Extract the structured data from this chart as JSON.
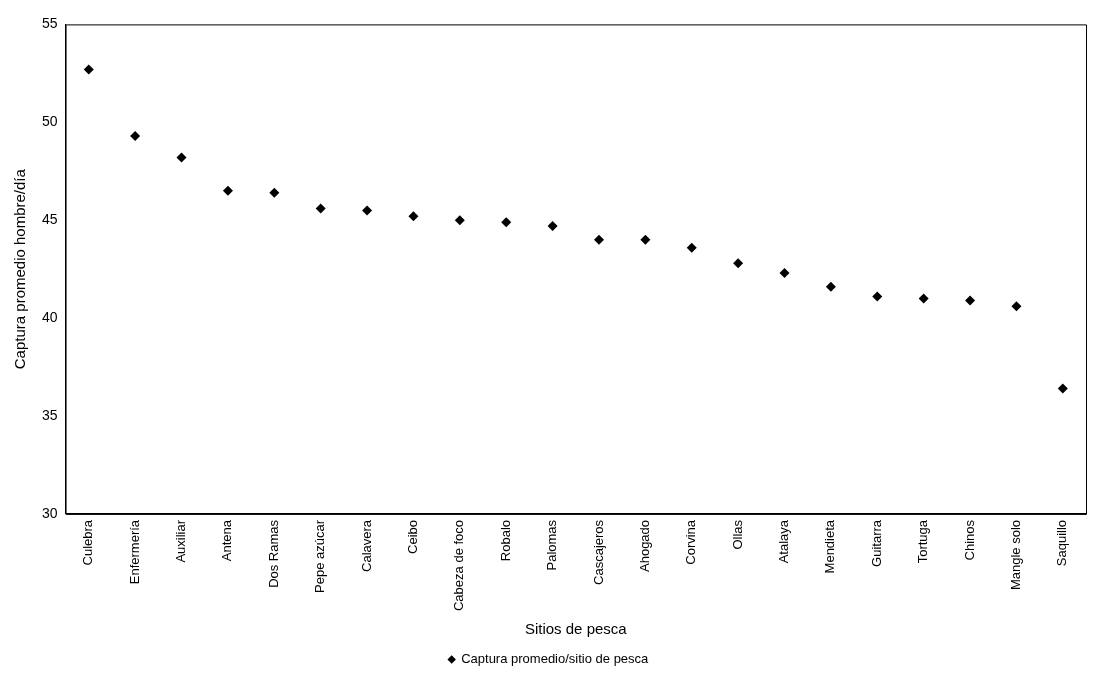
{
  "chart_data": {
    "type": "scatter",
    "xlabel": "Sitios de pesca",
    "ylabel": "Captura promedio hombre/día",
    "categories": [
      "Culebra",
      "Enfermería",
      "Auxiliar",
      "Antena",
      "Dos Ramas",
      "Pepe azúcar",
      "Calavera",
      "Ceibo",
      "Cabeza de foco",
      "Robalo",
      "Palomas",
      "Cascajeros",
      "Ahogado",
      "Corvina",
      "Ollas",
      "Atalaya",
      "Mendieta",
      "Guitarra",
      "Tortuga",
      "Chinos",
      "Mangle solo",
      "Saquillo"
    ],
    "series": [
      {
        "name": "Captura promedio/sitio de pesca",
        "color": "#000000",
        "values": [
          52.7,
          49.3,
          48.2,
          46.5,
          46.4,
          45.6,
          45.5,
          45.2,
          45.0,
          44.9,
          44.7,
          44.0,
          44.0,
          43.6,
          42.8,
          42.3,
          41.6,
          41.1,
          41.0,
          40.9,
          40.6,
          36.4
        ]
      }
    ],
    "ylim": [
      30,
      55
    ],
    "yticks": [
      30,
      35,
      40,
      45,
      50,
      55
    ],
    "grid": false,
    "legend": "bottom",
    "marker": "diamond"
  }
}
